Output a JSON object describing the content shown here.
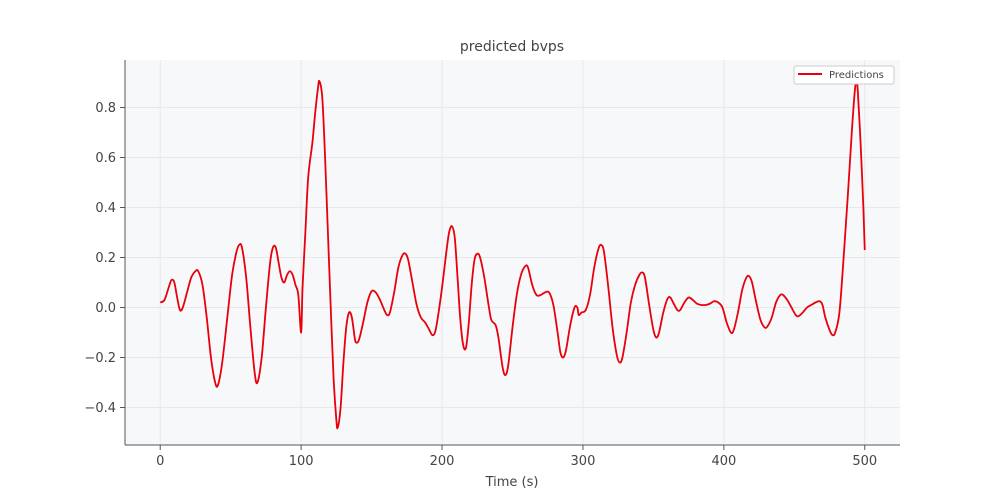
{
  "chart_data": {
    "type": "line",
    "title": "predicted bvps",
    "xlabel": "Time (s)",
    "ylabel": "",
    "xlim": [
      -25,
      525
    ],
    "ylim": [
      -0.55,
      0.99
    ],
    "xticks": [
      0,
      100,
      200,
      300,
      400,
      500
    ],
    "yticks": [
      -0.4,
      -0.2,
      0.0,
      0.2,
      0.4,
      0.6,
      0.8
    ],
    "xtick_labels": [
      "0",
      "100",
      "200",
      "300",
      "400",
      "500"
    ],
    "ytick_labels": [
      "−0.4",
      "−0.2",
      "0.0",
      "0.2",
      "0.4",
      "0.6",
      "0.8"
    ],
    "grid": true,
    "legend_position": "top-right",
    "series": [
      {
        "name": "Predictions",
        "color": "#e8000b",
        "points": [
          [
            0,
            0.02
          ],
          [
            3,
            0.03
          ],
          [
            6,
            0.08
          ],
          [
            8,
            0.11
          ],
          [
            10,
            0.1
          ],
          [
            12,
            0.04
          ],
          [
            14,
            -0.01
          ],
          [
            16,
            0.0
          ],
          [
            19,
            0.06
          ],
          [
            22,
            0.12
          ],
          [
            25,
            0.145
          ],
          [
            27,
            0.145
          ],
          [
            30,
            0.09
          ],
          [
            33,
            -0.04
          ],
          [
            36,
            -0.2
          ],
          [
            39,
            -0.3
          ],
          [
            41,
            -0.31
          ],
          [
            44,
            -0.22
          ],
          [
            48,
            -0.02
          ],
          [
            51,
            0.13
          ],
          [
            54,
            0.22
          ],
          [
            56,
            0.25
          ],
          [
            58,
            0.24
          ],
          [
            61,
            0.12
          ],
          [
            64,
            -0.08
          ],
          [
            67,
            -0.26
          ],
          [
            69,
            -0.3
          ],
          [
            72,
            -0.2
          ],
          [
            75,
            0.0
          ],
          [
            78,
            0.18
          ],
          [
            80,
            0.24
          ],
          [
            82,
            0.24
          ],
          [
            84,
            0.18
          ],
          [
            86,
            0.12
          ],
          [
            88,
            0.1
          ],
          [
            90,
            0.13
          ],
          [
            92,
            0.145
          ],
          [
            94,
            0.13
          ],
          [
            96,
            0.09
          ],
          [
            98,
            0.05
          ],
          [
            100,
            -0.1
          ],
          [
            101,
            0.08
          ],
          [
            103,
            0.3
          ],
          [
            105,
            0.52
          ],
          [
            108,
            0.66
          ],
          [
            110,
            0.78
          ],
          [
            112,
            0.88
          ],
          [
            113,
            0.905
          ],
          [
            115,
            0.84
          ],
          [
            117,
            0.6
          ],
          [
            119,
            0.3
          ],
          [
            121,
            0.0
          ],
          [
            123,
            -0.28
          ],
          [
            125,
            -0.45
          ],
          [
            126,
            -0.48
          ],
          [
            128,
            -0.4
          ],
          [
            130,
            -0.22
          ],
          [
            132,
            -0.08
          ],
          [
            134,
            -0.02
          ],
          [
            136,
            -0.04
          ],
          [
            138,
            -0.12
          ],
          [
            139,
            -0.14
          ],
          [
            141,
            -0.13
          ],
          [
            144,
            -0.06
          ],
          [
            147,
            0.02
          ],
          [
            150,
            0.065
          ],
          [
            153,
            0.06
          ],
          [
            156,
            0.03
          ],
          [
            159,
            -0.01
          ],
          [
            161,
            -0.03
          ],
          [
            163,
            -0.02
          ],
          [
            166,
            0.06
          ],
          [
            169,
            0.16
          ],
          [
            172,
            0.21
          ],
          [
            174,
            0.215
          ],
          [
            176,
            0.19
          ],
          [
            179,
            0.1
          ],
          [
            182,
            0.01
          ],
          [
            185,
            -0.04
          ],
          [
            188,
            -0.06
          ],
          [
            191,
            -0.09
          ],
          [
            193,
            -0.11
          ],
          [
            195,
            -0.1
          ],
          [
            197,
            -0.04
          ],
          [
            200,
            0.08
          ],
          [
            203,
            0.22
          ],
          [
            205,
            0.3
          ],
          [
            207,
            0.325
          ],
          [
            209,
            0.28
          ],
          [
            211,
            0.12
          ],
          [
            213,
            -0.05
          ],
          [
            215,
            -0.15
          ],
          [
            217,
            -0.16
          ],
          [
            219,
            -0.06
          ],
          [
            221,
            0.09
          ],
          [
            223,
            0.19
          ],
          [
            225,
            0.215
          ],
          [
            227,
            0.2
          ],
          [
            230,
            0.12
          ],
          [
            233,
            0.01
          ],
          [
            235,
            -0.05
          ],
          [
            238,
            -0.07
          ],
          [
            240,
            -0.12
          ],
          [
            243,
            -0.24
          ],
          [
            245,
            -0.27
          ],
          [
            247,
            -0.23
          ],
          [
            250,
            -0.08
          ],
          [
            253,
            0.05
          ],
          [
            256,
            0.13
          ],
          [
            259,
            0.165
          ],
          [
            261,
            0.16
          ],
          [
            264,
            0.09
          ],
          [
            267,
            0.05
          ],
          [
            270,
            0.05
          ],
          [
            273,
            0.06
          ],
          [
            276,
            0.06
          ],
          [
            279,
            0.01
          ],
          [
            282,
            -0.1
          ],
          [
            284,
            -0.18
          ],
          [
            286,
            -0.2
          ],
          [
            288,
            -0.17
          ],
          [
            291,
            -0.07
          ],
          [
            294,
            0.0
          ],
          [
            296,
            0.0
          ],
          [
            297,
            -0.03
          ],
          [
            299,
            -0.02
          ],
          [
            302,
            -0.01
          ],
          [
            305,
            0.05
          ],
          [
            308,
            0.16
          ],
          [
            311,
            0.235
          ],
          [
            313,
            0.25
          ],
          [
            315,
            0.22
          ],
          [
            318,
            0.08
          ],
          [
            321,
            -0.08
          ],
          [
            324,
            -0.19
          ],
          [
            326,
            -0.22
          ],
          [
            328,
            -0.2
          ],
          [
            331,
            -0.1
          ],
          [
            334,
            0.02
          ],
          [
            337,
            0.09
          ],
          [
            340,
            0.13
          ],
          [
            342,
            0.14
          ],
          [
            344,
            0.12
          ],
          [
            347,
            0.01
          ],
          [
            350,
            -0.09
          ],
          [
            352,
            -0.12
          ],
          [
            354,
            -0.1
          ],
          [
            357,
            -0.02
          ],
          [
            360,
            0.035
          ],
          [
            362,
            0.04
          ],
          [
            364,
            0.02
          ],
          [
            367,
            -0.01
          ],
          [
            369,
            -0.01
          ],
          [
            372,
            0.02
          ],
          [
            375,
            0.04
          ],
          [
            378,
            0.03
          ],
          [
            381,
            0.015
          ],
          [
            384,
            0.01
          ],
          [
            387,
            0.01
          ],
          [
            390,
            0.015
          ],
          [
            393,
            0.025
          ],
          [
            396,
            0.02
          ],
          [
            399,
            0.0
          ],
          [
            402,
            -0.06
          ],
          [
            405,
            -0.1
          ],
          [
            407,
            -0.09
          ],
          [
            410,
            -0.02
          ],
          [
            413,
            0.07
          ],
          [
            416,
            0.12
          ],
          [
            418,
            0.125
          ],
          [
            420,
            0.1
          ],
          [
            423,
            0.02
          ],
          [
            426,
            -0.05
          ],
          [
            429,
            -0.08
          ],
          [
            431,
            -0.075
          ],
          [
            434,
            -0.04
          ],
          [
            437,
            0.02
          ],
          [
            440,
            0.05
          ],
          [
            442,
            0.05
          ],
          [
            445,
            0.03
          ],
          [
            448,
            0.0
          ],
          [
            451,
            -0.03
          ],
          [
            453,
            -0.035
          ],
          [
            456,
            -0.02
          ],
          [
            459,
            0.0
          ],
          [
            462,
            0.01
          ],
          [
            465,
            0.02
          ],
          [
            468,
            0.025
          ],
          [
            470,
            0.01
          ],
          [
            472,
            -0.04
          ],
          [
            475,
            -0.09
          ],
          [
            477,
            -0.11
          ],
          [
            479,
            -0.1
          ],
          [
            482,
            -0.02
          ],
          [
            485,
            0.2
          ],
          [
            488,
            0.45
          ],
          [
            491,
            0.72
          ],
          [
            493,
            0.87
          ],
          [
            494,
            0.9
          ],
          [
            495,
            0.87
          ],
          [
            497,
            0.66
          ],
          [
            499,
            0.4
          ],
          [
            500,
            0.23
          ]
        ]
      }
    ]
  }
}
